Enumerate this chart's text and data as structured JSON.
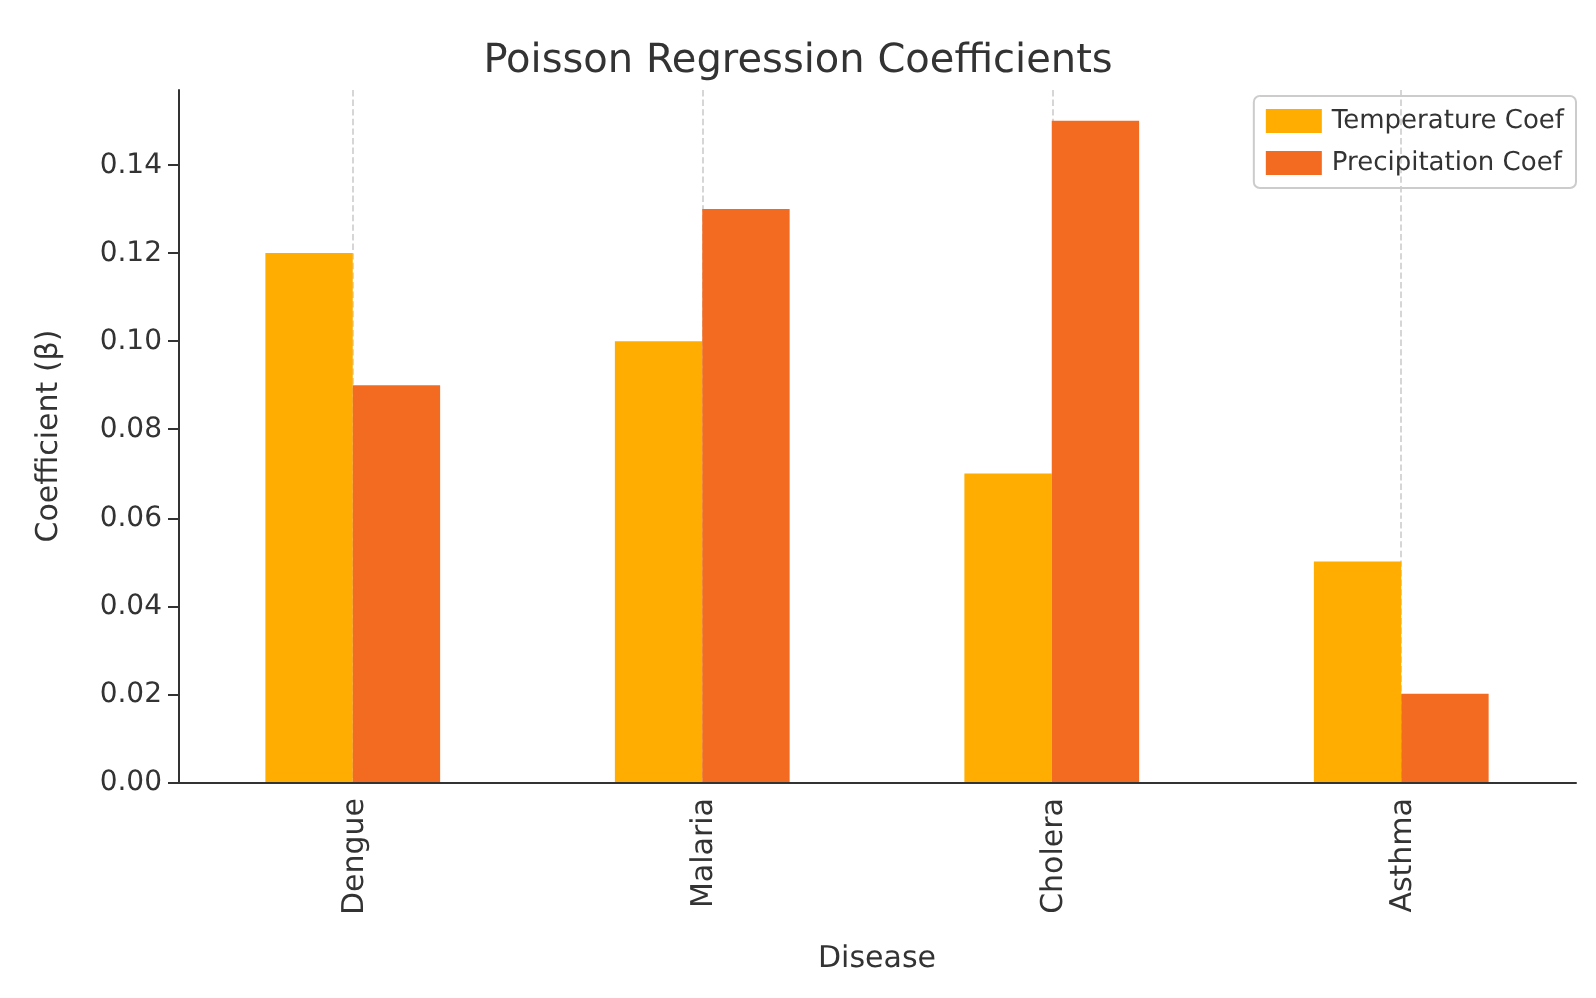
{
  "chart_data": {
    "type": "bar",
    "title": "Poisson Regression Coefficients",
    "xlabel": "Disease",
    "ylabel": "Coefficient (β)",
    "categories": [
      "Dengue",
      "Malaria",
      "Cholera",
      "Asthma"
    ],
    "series": [
      {
        "name": "Temperature Coef",
        "color": "#ffad00",
        "values": [
          0.12,
          0.1,
          0.07,
          0.05
        ]
      },
      {
        "name": "Precipitation Coef",
        "color": "#f36b21",
        "values": [
          0.09,
          0.13,
          0.15,
          0.02
        ]
      }
    ],
    "ylim": [
      0,
      0.157
    ],
    "yticks": [
      {
        "value": 0,
        "label": "0.00"
      },
      0.02,
      0.04,
      0.06,
      0.08,
      {
        "value": 0.1,
        "label": "0.10"
      },
      0.12,
      0.14
    ],
    "grid": "x",
    "legend": "top right"
  }
}
